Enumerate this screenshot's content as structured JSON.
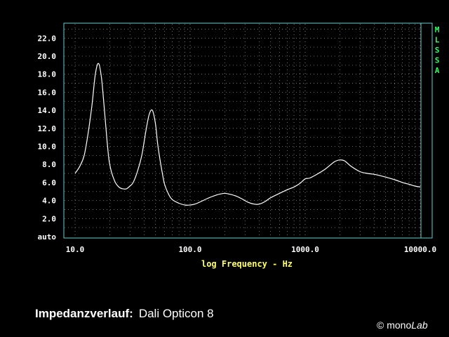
{
  "chart_data": {
    "type": "line",
    "xscale": "log",
    "xlim": [
      10,
      10000
    ],
    "ylim": [
      0,
      24
    ],
    "xlabel": "log Frequency - Hz",
    "x_ticks": [
      "10.0",
      "100.0",
      "1000.0",
      "10000.0"
    ],
    "y_ticks": [
      "auto",
      "2.0",
      "4.0",
      "6.0",
      "8.0",
      "10.0",
      "12.0",
      "14.0",
      "16.0",
      "18.0",
      "20.0",
      "22.0"
    ],
    "grid": true,
    "side_label": [
      "M",
      "L",
      "S",
      "S",
      "A"
    ],
    "series": [
      {
        "x": [
          10,
          11,
          12,
          13,
          14,
          15,
          16,
          17,
          18,
          19,
          20,
          22,
          24,
          26,
          28,
          30,
          32,
          35,
          38,
          41,
          44,
          47,
          50,
          52,
          54,
          57,
          60,
          65,
          70,
          80,
          90,
          100,
          110,
          120,
          140,
          160,
          180,
          200,
          220,
          250,
          280,
          320,
          360,
          400,
          450,
          500,
          600,
          700,
          800,
          900,
          1000,
          1100,
          1300,
          1500,
          1800,
          2000,
          2200,
          2500,
          3000,
          3500,
          4000,
          5000,
          6000,
          7000,
          8000,
          9000,
          10000
        ],
        "y": [
          7.0,
          7.8,
          9.0,
          11.5,
          14.5,
          18.0,
          19.2,
          17.5,
          14.0,
          10.5,
          8.0,
          6.2,
          5.5,
          5.3,
          5.3,
          5.6,
          6.0,
          7.3,
          9.0,
          11.5,
          13.5,
          14.0,
          12.5,
          10.5,
          9.0,
          7.2,
          5.8,
          4.7,
          4.1,
          3.7,
          3.5,
          3.5,
          3.6,
          3.8,
          4.2,
          4.5,
          4.7,
          4.8,
          4.7,
          4.5,
          4.2,
          3.8,
          3.6,
          3.6,
          3.9,
          4.3,
          4.8,
          5.2,
          5.5,
          5.9,
          6.4,
          6.5,
          7.0,
          7.5,
          8.3,
          8.5,
          8.4,
          7.8,
          7.2,
          7.0,
          6.9,
          6.6,
          6.3,
          6.0,
          5.8,
          5.6,
          5.5
        ]
      }
    ]
  },
  "caption": {
    "label": "Impedanzverlauf:",
    "value": "Dali Opticon 8"
  },
  "copyright": {
    "symbol": "©",
    "brand": "mono",
    "brand_italic": "Lab"
  },
  "colors": {
    "frame": "#66cccc",
    "curve": "#ffffff",
    "grid": "#888888",
    "xlabel": "#ffff66",
    "side": "#33ff66"
  }
}
